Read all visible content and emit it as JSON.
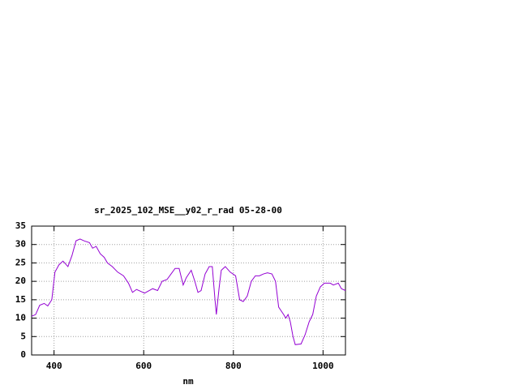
{
  "chart_data": {
    "type": "line",
    "title": "sr_2025_102_MSE__y02_r_rad 05-28-00",
    "x_label": "nm",
    "x": [
      350,
      359,
      368,
      378,
      386,
      395,
      402,
      411,
      420,
      431,
      440,
      449,
      458,
      467,
      479,
      486,
      494,
      503,
      512,
      519,
      530,
      542,
      555,
      566,
      575,
      584,
      602,
      620,
      631,
      641,
      652,
      661,
      670,
      679,
      688,
      695,
      706,
      714,
      721,
      728,
      737,
      746,
      753,
      759,
      762,
      768,
      773,
      782,
      793,
      805,
      814,
      822,
      831,
      840,
      849,
      858,
      867,
      876,
      886,
      894,
      901,
      912,
      917,
      922,
      927,
      933,
      938,
      951,
      960,
      969,
      977,
      985,
      994,
      1003,
      1016,
      1023,
      1034,
      1041,
      1050
    ],
    "series": [
      {
        "color": "#9400d3",
        "values": [
          10.5,
          11,
          13.5,
          14,
          13.3,
          15,
          22.5,
          24.5,
          25.5,
          24,
          27,
          31,
          31.5,
          31,
          30.5,
          29,
          29.5,
          27.5,
          26.5,
          25,
          24,
          22.5,
          21.5,
          19.5,
          17,
          17.8,
          16.8,
          18,
          17.5,
          20,
          20.5,
          22,
          23.5,
          23.5,
          19,
          21,
          23,
          20,
          17,
          17.5,
          22,
          24,
          24,
          15,
          11,
          18,
          23,
          24,
          22.5,
          21.5,
          15,
          14.5,
          16,
          20,
          21.5,
          21.5,
          22,
          22.3,
          22,
          20,
          13,
          11,
          10,
          11,
          9,
          5,
          2.8,
          3,
          5.5,
          9,
          11,
          16,
          18.5,
          19.5,
          19.5,
          19,
          19.5,
          18,
          17.5
        ]
      }
    ],
    "xlim": [
      350,
      1050
    ],
    "ylim": [
      0,
      35
    ],
    "xticks": [
      400,
      600,
      800,
      1000
    ],
    "yticks": [
      0,
      5,
      10,
      15,
      20,
      25,
      30,
      35
    ],
    "grid": true
  }
}
